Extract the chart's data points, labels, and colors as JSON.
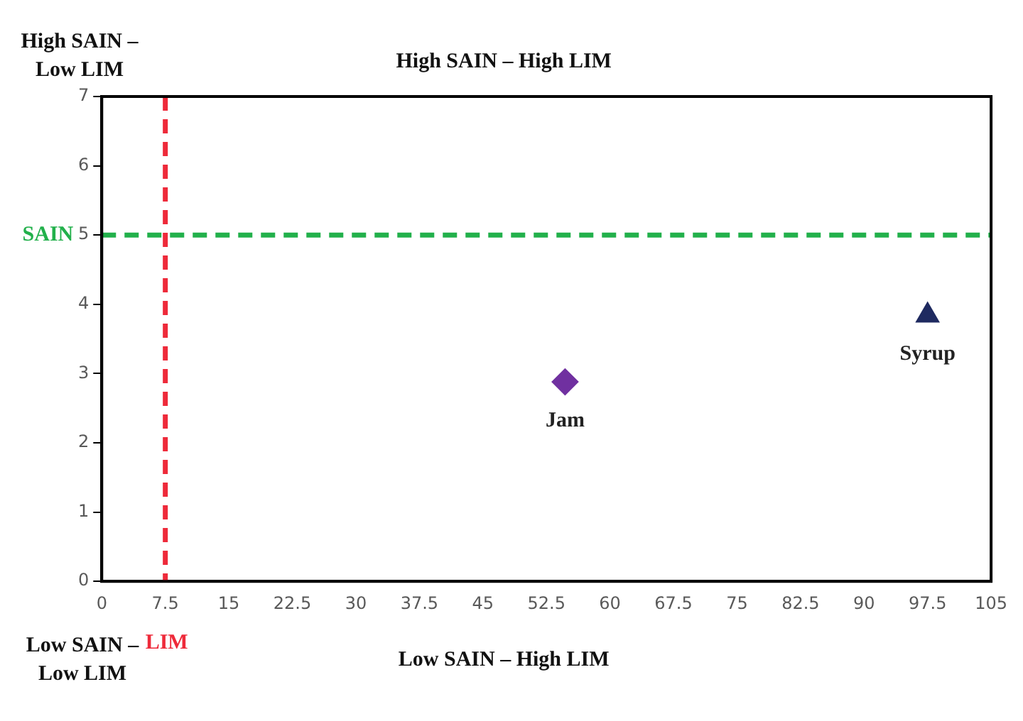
{
  "chart_data": {
    "type": "scatter",
    "xlim": [
      0,
      105
    ],
    "xticks": [
      0,
      7.5,
      15,
      22.5,
      30,
      37.5,
      45,
      52.5,
      60,
      67.5,
      75,
      82.5,
      90,
      97.5,
      105
    ],
    "ylim": [
      0,
      7
    ],
    "yticks": [
      0,
      1,
      2,
      3,
      4,
      5,
      6,
      7
    ],
    "grid": false,
    "legend": false,
    "series": [
      {
        "name": "Jam",
        "color": "#7030a0",
        "marker": "diamond",
        "x": [
          54.7
        ],
        "values": [
          2.88
        ]
      },
      {
        "name": "Syrup",
        "color": "#1f2a60",
        "marker": "triangle",
        "x": [
          97.5
        ],
        "values": [
          3.84
        ]
      }
    ],
    "ref_lines": [
      {
        "axis": "y",
        "value": 5,
        "label": "SAIN",
        "color": "#22b04b",
        "line_style": "dashed"
      },
      {
        "axis": "x",
        "value": 7.5,
        "label": "LIM",
        "color": "#ee2a3a",
        "line_style": "dashed"
      }
    ],
    "annotations": [
      "High SAIN –\nLow LIM",
      "High SAIN – High LIM",
      "Low SAIN –\nLow LIM",
      "Low SAIN – High LIM"
    ]
  }
}
